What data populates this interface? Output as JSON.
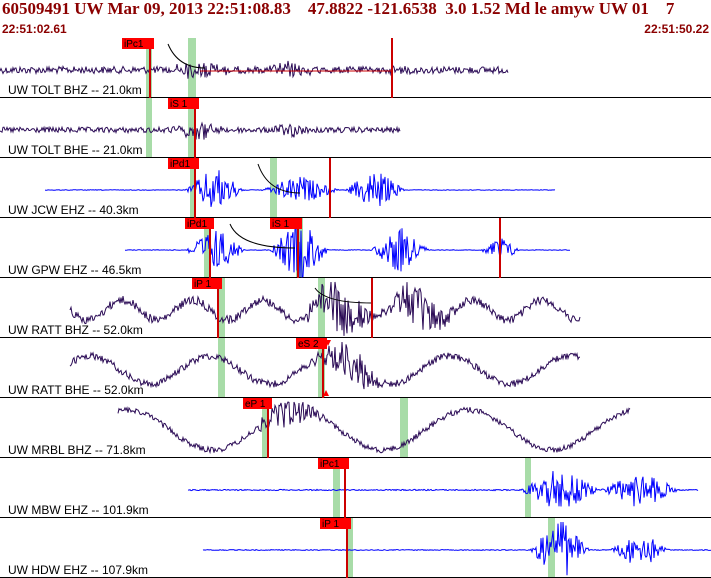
{
  "header": {
    "title": "60509491 UW Mar 09, 2013 22:51:08.83    47.8822 -121.6538  3.0 1.52 Md le amyw UW 01    7",
    "time_start": "22:51:02.61",
    "time_end": "22:51:50.22"
  },
  "colors": {
    "title": "#8b0000",
    "velocity_trace": "#0000ff",
    "acceleration_trace": "#2a0a55",
    "pick_flag": "#ff0000",
    "pick_line": "#cc0000",
    "window_shade": "#a8dca8",
    "separator": "#000000"
  },
  "traces": [
    {
      "label": "UW TOLT BHZ -- 21.0km",
      "type": "accel",
      "picks": [
        {
          "label": "iPc1"
        },
        {
          "label": ""
        }
      ]
    },
    {
      "label": "UW TOLT BHE -- 21.0km",
      "type": "accel",
      "picks": [
        {
          "label": "iS 1"
        }
      ]
    },
    {
      "label": "UW JCW EHZ -- 40.3km",
      "type": "vel",
      "picks": [
        {
          "label": "iPd1"
        },
        {
          "label": ""
        }
      ]
    },
    {
      "label": "UW GPW EHZ -- 46.5km",
      "type": "vel",
      "picks": [
        {
          "label": "iPd1"
        },
        {
          "label": "iS 1"
        },
        {
          "label": ""
        }
      ]
    },
    {
      "label": "UW RATT BHZ -- 52.0km",
      "type": "accel",
      "picks": [
        {
          "label": "iP 1"
        },
        {
          "label": ""
        }
      ]
    },
    {
      "label": "UW RATT BHE -- 52.0km",
      "type": "accel",
      "picks": [
        {
          "label": "eS 2"
        }
      ]
    },
    {
      "label": "UW MRBL BHZ -- 71.8km",
      "type": "accel",
      "picks": [
        {
          "label": "eP 1"
        }
      ]
    },
    {
      "label": "UW MBW EHZ -- 101.9km",
      "type": "vel",
      "picks": [
        {
          "label": "iPc1"
        }
      ]
    },
    {
      "label": "UW HDW EHZ -- 107.9km",
      "type": "vel",
      "picks": [
        {
          "label": "iP 1"
        }
      ]
    }
  ]
}
